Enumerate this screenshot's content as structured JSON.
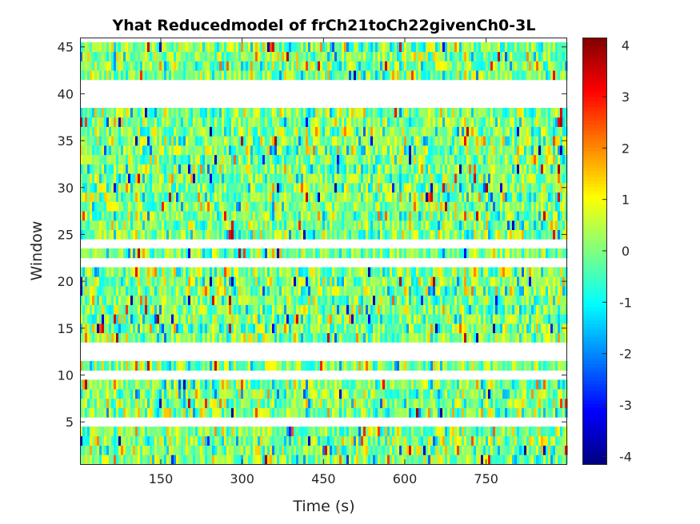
{
  "chart_data": {
    "type": "heatmap",
    "title": "Yhat Reducedmodel of frCh21toCh22givenCh0-3L",
    "xlabel": "Time (s)",
    "ylabel": "Window",
    "xlim": [
      1,
      898
    ],
    "ylim": [
      0.5,
      46
    ],
    "x_ticks": [
      150,
      300,
      450,
      600,
      750
    ],
    "x_tick_labels": [
      "150",
      "300",
      "450",
      "600",
      "750"
    ],
    "y_ticks": [
      5,
      10,
      15,
      20,
      25,
      30,
      35,
      40,
      45
    ],
    "y_tick_labels": [
      "5",
      "10",
      "15",
      "20",
      "25",
      "30",
      "35",
      "40",
      "45"
    ],
    "colormap": "jet",
    "clim": [
      -4.15,
      4.15
    ],
    "colorbar": {
      "ticks": [
        -4,
        -3,
        -2,
        -1,
        0,
        1,
        2,
        3,
        4
      ],
      "tick_labels": [
        "-4",
        "-3",
        "-2",
        "-1",
        "0",
        "1",
        "2",
        "3",
        "4"
      ]
    },
    "windows_with_data": [
      1,
      2,
      3,
      4,
      6,
      7,
      8,
      9,
      11,
      14,
      15,
      16,
      17,
      18,
      19,
      20,
      21,
      23,
      25,
      26,
      27,
      28,
      29,
      30,
      31,
      32,
      33,
      34,
      35,
      36,
      37,
      38,
      42,
      43,
      44,
      45
    ],
    "empty_windows": [
      5,
      10,
      12,
      13,
      22,
      24,
      39,
      40,
      41
    ],
    "grid": false
  }
}
